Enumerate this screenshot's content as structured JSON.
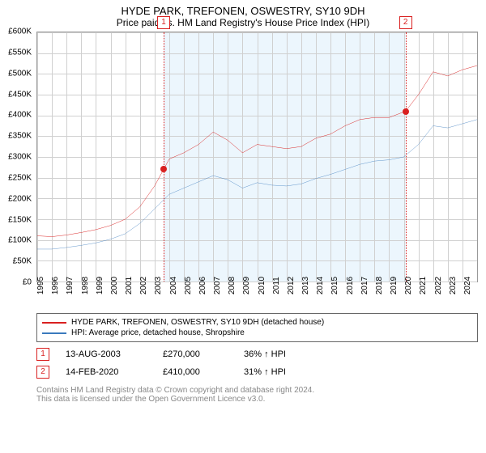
{
  "title": "HYDE PARK, TREFONEN, OSWESTRY, SY10 9DH",
  "subtitle": "Price paid vs. HM Land Registry's House Price Index (HPI)",
  "chart": {
    "type": "line",
    "ylim": [
      0,
      600000
    ],
    "ytick_step": 50000,
    "ylabels": [
      "£0",
      "£50K",
      "£100K",
      "£150K",
      "£200K",
      "£250K",
      "£300K",
      "£350K",
      "£400K",
      "£450K",
      "£500K",
      "£550K",
      "£600K"
    ],
    "xlim": [
      1995,
      2025
    ],
    "xlabels": [
      "1995",
      "1996",
      "1997",
      "1998",
      "1999",
      "2000",
      "2001",
      "2002",
      "2003",
      "2004",
      "2005",
      "2006",
      "2007",
      "2008",
      "2009",
      "2010",
      "2011",
      "2012",
      "2013",
      "2014",
      "2015",
      "2016",
      "2017",
      "2018",
      "2019",
      "2020",
      "2021",
      "2022",
      "2023",
      "2024"
    ],
    "shade_start": 2003.62,
    "shade_end": 2020.12,
    "grid_color": "#d0d0d0",
    "background": "#ffffff",
    "series": [
      {
        "name": "HYDE PARK, TREFONEN, OSWESTRY, SY10 9DH (detached house)",
        "color": "#d92020",
        "width": 1.6,
        "points": [
          [
            1995,
            110000
          ],
          [
            1996,
            108000
          ],
          [
            1997,
            112000
          ],
          [
            1998,
            118000
          ],
          [
            1999,
            125000
          ],
          [
            2000,
            135000
          ],
          [
            2001,
            150000
          ],
          [
            2002,
            180000
          ],
          [
            2003,
            230000
          ],
          [
            2003.62,
            270000
          ],
          [
            2004,
            295000
          ],
          [
            2005,
            310000
          ],
          [
            2006,
            330000
          ],
          [
            2007,
            360000
          ],
          [
            2008,
            340000
          ],
          [
            2009,
            310000
          ],
          [
            2010,
            330000
          ],
          [
            2011,
            325000
          ],
          [
            2012,
            320000
          ],
          [
            2013,
            325000
          ],
          [
            2014,
            345000
          ],
          [
            2015,
            355000
          ],
          [
            2016,
            375000
          ],
          [
            2017,
            390000
          ],
          [
            2018,
            395000
          ],
          [
            2019,
            395000
          ],
          [
            2020.12,
            410000
          ],
          [
            2021,
            450000
          ],
          [
            2022,
            505000
          ],
          [
            2023,
            495000
          ],
          [
            2024,
            510000
          ],
          [
            2025,
            520000
          ]
        ]
      },
      {
        "name": "HPI: Average price, detached house, Shropshire",
        "color": "#3a7abd",
        "width": 1.3,
        "points": [
          [
            1995,
            78000
          ],
          [
            1996,
            78000
          ],
          [
            1997,
            82000
          ],
          [
            1998,
            87000
          ],
          [
            1999,
            93000
          ],
          [
            2000,
            102000
          ],
          [
            2001,
            115000
          ],
          [
            2002,
            140000
          ],
          [
            2003,
            175000
          ],
          [
            2004,
            210000
          ],
          [
            2005,
            225000
          ],
          [
            2006,
            240000
          ],
          [
            2007,
            255000
          ],
          [
            2008,
            245000
          ],
          [
            2009,
            225000
          ],
          [
            2010,
            238000
          ],
          [
            2011,
            232000
          ],
          [
            2012,
            230000
          ],
          [
            2013,
            235000
          ],
          [
            2014,
            248000
          ],
          [
            2015,
            258000
          ],
          [
            2016,
            270000
          ],
          [
            2017,
            282000
          ],
          [
            2018,
            290000
          ],
          [
            2019,
            293000
          ],
          [
            2020,
            300000
          ],
          [
            2021,
            330000
          ],
          [
            2022,
            375000
          ],
          [
            2023,
            370000
          ],
          [
            2024,
            380000
          ],
          [
            2025,
            390000
          ]
        ]
      }
    ],
    "markers": [
      {
        "n": "1",
        "year": 2003.62,
        "price": 270000,
        "color": "#d92020"
      },
      {
        "n": "2",
        "year": 2020.12,
        "price": 410000,
        "color": "#d92020"
      }
    ]
  },
  "legend": [
    {
      "color": "#d92020",
      "label": "HYDE PARK, TREFONEN, OSWESTRY, SY10 9DH (detached house)"
    },
    {
      "color": "#3a7abd",
      "label": "HPI: Average price, detached house, Shropshire"
    }
  ],
  "datapoints": [
    {
      "n": "1",
      "color": "#d92020",
      "date": "13-AUG-2003",
      "price": "£270,000",
      "hpi": "36% ↑ HPI"
    },
    {
      "n": "2",
      "color": "#d92020",
      "date": "14-FEB-2020",
      "price": "£410,000",
      "hpi": "31% ↑ HPI"
    }
  ],
  "footer": {
    "line1": "Contains HM Land Registry data © Crown copyright and database right 2024.",
    "line2": "This data is licensed under the Open Government Licence v3.0."
  }
}
